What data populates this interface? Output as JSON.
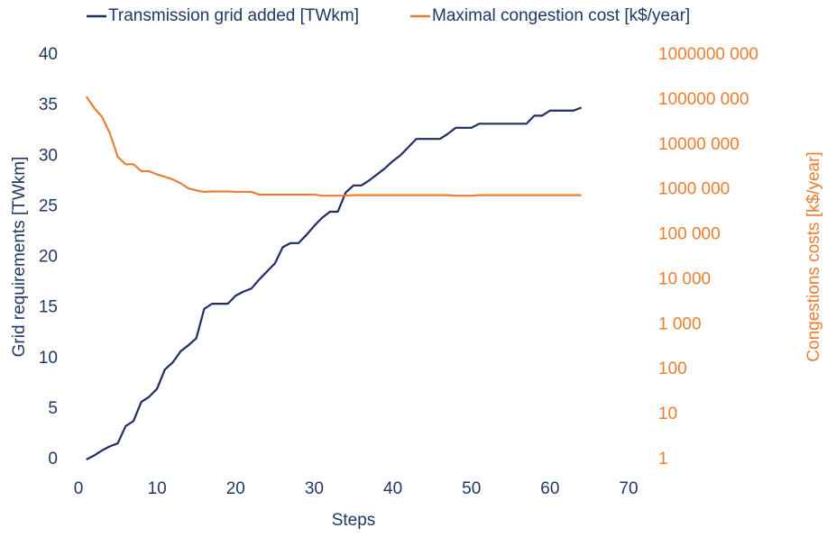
{
  "chart_data": {
    "type": "line",
    "x_label": "Steps",
    "y_label": "Grid requirements [TWkm]",
    "y2_label": "Congestions costs [k$/year]",
    "xlim": [
      0,
      70
    ],
    "xticks": [
      0,
      10,
      20,
      30,
      40,
      50,
      60,
      70
    ],
    "ylim": [
      0,
      40
    ],
    "yticks": [
      0,
      5,
      10,
      15,
      20,
      25,
      30,
      35,
      40
    ],
    "y2lim": [
      1,
      1000000000
    ],
    "y2scale": "log",
    "y2ticks": [
      1,
      10,
      100,
      {
        "value": 1000,
        "label": "1 000"
      },
      {
        "value": 10000,
        "label": "10 000"
      },
      {
        "value": 100000,
        "label": "100 000"
      },
      {
        "value": 1000000,
        "label": "1000 000"
      },
      {
        "value": 10000000,
        "label": "10000 000"
      },
      {
        "value": 100000000,
        "label": "100000 000"
      },
      {
        "value": 1000000000,
        "label": "1000000 000"
      }
    ],
    "grid": false,
    "legend": "top",
    "x": [
      1,
      2,
      3,
      4,
      5,
      6,
      7,
      8,
      9,
      10,
      11,
      12,
      13,
      14,
      15,
      16,
      17,
      18,
      19,
      20,
      21,
      22,
      23,
      24,
      25,
      26,
      27,
      28,
      29,
      30,
      31,
      32,
      33,
      34,
      35,
      36,
      37,
      38,
      39,
      40,
      41,
      42,
      43,
      44,
      45,
      46,
      47,
      48,
      49,
      50,
      51,
      52,
      53,
      54,
      55,
      56,
      57,
      58,
      59,
      60,
      61,
      62,
      63,
      64
    ],
    "series": [
      {
        "name": "Transmission grid added [TWkm]",
        "color": "#1f2d5f",
        "axis": "y",
        "values": [
          0,
          0.4,
          0.9,
          1.3,
          1.6,
          3.3,
          3.8,
          5.7,
          6.2,
          7.0,
          8.9,
          9.6,
          10.7,
          11.3,
          12.0,
          14.9,
          15.4,
          15.4,
          15.4,
          16.2,
          16.6,
          16.9,
          17.8,
          18.6,
          19.4,
          21.0,
          21.4,
          21.4,
          22.2,
          23.1,
          23.9,
          24.5,
          24.5,
          26.4,
          27.1,
          27.1,
          27.6,
          28.2,
          28.8,
          29.5,
          30.1,
          30.9,
          31.7,
          31.7,
          31.7,
          31.7,
          32.2,
          32.8,
          32.8,
          32.8,
          33.2,
          33.2,
          33.2,
          33.2,
          33.2,
          33.2,
          33.2,
          34.0,
          34.0,
          34.5,
          34.5,
          34.5,
          34.5,
          34.8
        ]
      },
      {
        "name": "Maximal congestion cost [k$/year]",
        "color": "#ed7d31",
        "axis": "y2",
        "values": [
          120000000,
          66000000,
          42000000,
          18000000,
          5400000,
          3700000,
          3700000,
          2600000,
          2600000,
          2200000,
          1950000,
          1700000,
          1400000,
          1070000,
          970000,
          900000,
          920000,
          920000,
          920000,
          900000,
          900000,
          900000,
          780000,
          780000,
          780000,
          780000,
          780000,
          780000,
          780000,
          780000,
          740000,
          740000,
          740000,
          740000,
          760000,
          760000,
          760000,
          760000,
          760000,
          760000,
          760000,
          760000,
          760000,
          760000,
          760000,
          760000,
          760000,
          740000,
          740000,
          740000,
          760000,
          760000,
          760000,
          760000,
          760000,
          760000,
          760000,
          760000,
          760000,
          760000,
          760000,
          760000,
          760000,
          760000
        ]
      }
    ]
  }
}
